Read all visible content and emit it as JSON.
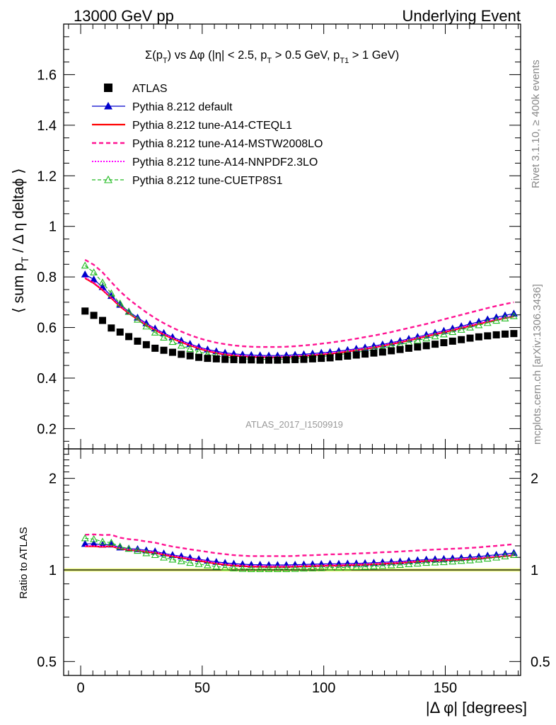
{
  "header": {
    "left": "13000 GeV pp",
    "right": "Underlying Event"
  },
  "side_labels": {
    "rivet": "Rivet 3.1.10, ≥ 400k events",
    "mcplots": "mcplots.cern.ch [arXiv:1306.3436]"
  },
  "plot_title": {
    "sigma": "Σ",
    "p_open": "(p",
    "p_sub": "T",
    "mid": ") vs Δφ (|η| < 2.5, p",
    "mid_sub": "T",
    "mid2": " > 0.5 GeV, p",
    "mid2_sub": "T1",
    "end": " > 1 GeV)"
  },
  "watermark": "ATLAS_2017_I1509919",
  "colors": {
    "data": "#000000",
    "default": "#0000cc",
    "cteql1": "#ff0000",
    "mstw": "#ff1493",
    "nnpdf": "#ff00ff",
    "cuetp8s1": "#22bb22",
    "band": "#e8f57a"
  },
  "chart_data": [
    {
      "type": "line",
      "panel": "main",
      "title": "Σ(pT) vs Δφ (|η| < 2.5, pT > 0.5 GeV, pT1 > 1 GeV)",
      "xlabel": "|Δ φ| [degrees]",
      "ylabel": "⟨ sum pT / Δ η deltaφ ⟩",
      "xlim": [
        -7,
        181
      ],
      "ylim": [
        0.12,
        1.8
      ],
      "xticks": [
        "0",
        "50",
        "100",
        "150"
      ],
      "yticks": [
        "0.2",
        "0.4",
        "0.6",
        "0.8",
        "1",
        "1.2",
        "1.4",
        "1.6"
      ],
      "legend_position": "top-left",
      "x": [
        1.8,
        5.4,
        9.0,
        12.6,
        16.2,
        19.8,
        23.4,
        27.0,
        30.6,
        34.2,
        37.8,
        41.4,
        45.0,
        48.6,
        52.2,
        55.8,
        59.4,
        63.0,
        66.6,
        70.2,
        73.8,
        77.4,
        81.0,
        84.6,
        88.2,
        91.8,
        95.4,
        99.0,
        102.6,
        106.2,
        109.8,
        113.4,
        117.0,
        120.6,
        124.2,
        127.8,
        131.4,
        135.0,
        138.6,
        142.2,
        145.8,
        149.4,
        153.0,
        156.6,
        160.2,
        163.8,
        167.4,
        171.0,
        174.6,
        178.2
      ],
      "series": [
        {
          "name": "ATLAS",
          "style": "data",
          "values": [
            0.665,
            0.648,
            0.628,
            0.598,
            0.582,
            0.564,
            0.546,
            0.532,
            0.518,
            0.51,
            0.502,
            0.494,
            0.488,
            0.482,
            0.478,
            0.476,
            0.474,
            0.473,
            0.472,
            0.472,
            0.471,
            0.471,
            0.471,
            0.472,
            0.473,
            0.474,
            0.476,
            0.478,
            0.48,
            0.484,
            0.487,
            0.491,
            0.495,
            0.499,
            0.503,
            0.508,
            0.513,
            0.518,
            0.523,
            0.528,
            0.534,
            0.54,
            0.546,
            0.552,
            0.558,
            0.563,
            0.567,
            0.571,
            0.574,
            0.576
          ]
        },
        {
          "name": "Pythia 8.212 default",
          "style": "default",
          "values": [
            0.81,
            0.79,
            0.76,
            0.725,
            0.69,
            0.663,
            0.639,
            0.617,
            0.596,
            0.578,
            0.562,
            0.548,
            0.535,
            0.523,
            0.513,
            0.506,
            0.5,
            0.496,
            0.493,
            0.491,
            0.49,
            0.489,
            0.489,
            0.49,
            0.492,
            0.494,
            0.497,
            0.5,
            0.503,
            0.507,
            0.511,
            0.516,
            0.521,
            0.527,
            0.533,
            0.54,
            0.547,
            0.555,
            0.563,
            0.571,
            0.579,
            0.587,
            0.596,
            0.605,
            0.614,
            0.623,
            0.632,
            0.64,
            0.648,
            0.655
          ]
        },
        {
          "name": "Pythia 8.212 tune-A14-CTEQL1",
          "style": "cteql1",
          "values": [
            0.795,
            0.775,
            0.748,
            0.716,
            0.683,
            0.656,
            0.632,
            0.61,
            0.59,
            0.572,
            0.556,
            0.542,
            0.529,
            0.517,
            0.507,
            0.499,
            0.493,
            0.489,
            0.486,
            0.484,
            0.483,
            0.482,
            0.482,
            0.483,
            0.485,
            0.487,
            0.49,
            0.493,
            0.496,
            0.5,
            0.505,
            0.51,
            0.515,
            0.521,
            0.527,
            0.534,
            0.541,
            0.549,
            0.557,
            0.565,
            0.573,
            0.581,
            0.589,
            0.598,
            0.606,
            0.614,
            0.622,
            0.63,
            0.637,
            0.644
          ]
        },
        {
          "name": "Pythia 8.212 tune-A14-MSTW2008LO",
          "style": "mstw",
          "values": [
            0.868,
            0.848,
            0.818,
            0.78,
            0.743,
            0.712,
            0.685,
            0.66,
            0.637,
            0.617,
            0.599,
            0.584,
            0.57,
            0.558,
            0.548,
            0.54,
            0.534,
            0.529,
            0.526,
            0.524,
            0.523,
            0.523,
            0.523,
            0.524,
            0.526,
            0.529,
            0.532,
            0.536,
            0.54,
            0.545,
            0.55,
            0.556,
            0.562,
            0.568,
            0.575,
            0.582,
            0.59,
            0.598,
            0.606,
            0.614,
            0.623,
            0.632,
            0.641,
            0.65,
            0.659,
            0.668,
            0.677,
            0.685,
            0.693,
            0.7
          ]
        },
        {
          "name": "Pythia 8.212 tune-A14-NNPDF2.3LO",
          "style": "nnpdf",
          "values": [
            0.798,
            0.778,
            0.751,
            0.719,
            0.686,
            0.659,
            0.635,
            0.613,
            0.593,
            0.575,
            0.559,
            0.545,
            0.532,
            0.52,
            0.51,
            0.502,
            0.496,
            0.492,
            0.489,
            0.487,
            0.486,
            0.485,
            0.485,
            0.486,
            0.488,
            0.49,
            0.493,
            0.496,
            0.499,
            0.503,
            0.508,
            0.513,
            0.518,
            0.524,
            0.53,
            0.537,
            0.544,
            0.552,
            0.56,
            0.568,
            0.576,
            0.584,
            0.592,
            0.601,
            0.609,
            0.617,
            0.625,
            0.633,
            0.64,
            0.647
          ]
        },
        {
          "name": "Pythia 8.212 tune-CUETP8S1",
          "style": "cuetp8s1",
          "values": [
            0.845,
            0.818,
            0.778,
            0.735,
            0.695,
            0.662,
            0.631,
            0.604,
            0.58,
            0.56,
            0.543,
            0.528,
            0.515,
            0.504,
            0.495,
            0.488,
            0.483,
            0.479,
            0.476,
            0.475,
            0.474,
            0.474,
            0.474,
            0.475,
            0.477,
            0.479,
            0.482,
            0.485,
            0.489,
            0.493,
            0.497,
            0.502,
            0.507,
            0.513,
            0.519,
            0.526,
            0.533,
            0.541,
            0.549,
            0.557,
            0.565,
            0.573,
            0.582,
            0.591,
            0.6,
            0.609,
            0.618,
            0.627,
            0.636,
            0.645
          ]
        }
      ]
    },
    {
      "type": "line",
      "panel": "ratio",
      "xlabel": "|Δ φ| [degrees]",
      "ylabel": "Ratio to ATLAS",
      "yscale": "log",
      "ylim": [
        0.45,
        2.5
      ],
      "yticks": [
        "0.5",
        "1",
        "2"
      ],
      "note": "Ratio = each series / ATLAS, drawn from the main panel values"
    }
  ],
  "legend": [
    {
      "label": "ATLAS",
      "style": "data"
    },
    {
      "label": "Pythia 8.212 default",
      "style": "default"
    },
    {
      "label": "Pythia 8.212 tune-A14-CTEQL1",
      "style": "cteql1"
    },
    {
      "label": "Pythia 8.212 tune-A14-MSTW2008LO",
      "style": "mstw"
    },
    {
      "label": "Pythia 8.212 tune-A14-NNPDF2.3LO",
      "style": "nnpdf"
    },
    {
      "label": "Pythia 8.212 tune-CUETP8S1",
      "style": "cuetp8s1"
    }
  ]
}
